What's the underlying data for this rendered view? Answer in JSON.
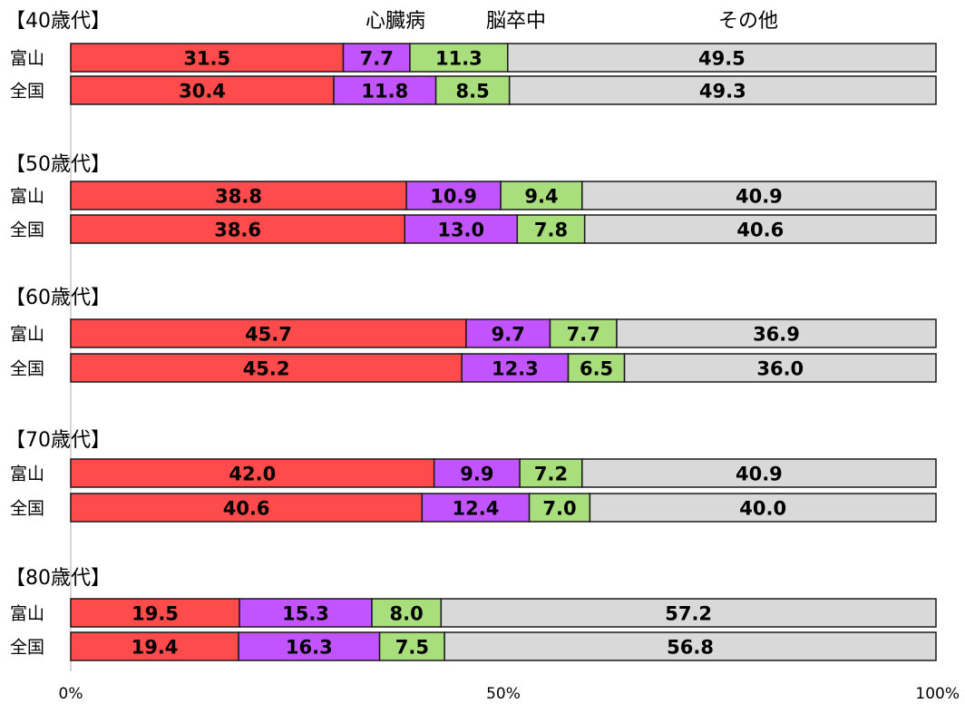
{
  "chart_data": {
    "type": "bar",
    "orientation": "horizontal",
    "stacked": "100%",
    "legend": {
      "placement": "top",
      "entries": [
        "",
        "心臓病",
        "脳卒中",
        "その他"
      ]
    },
    "series": [
      {
        "name": "",
        "color": "#ff4b4b"
      },
      {
        "name": "心臓病",
        "color": "#c154ff"
      },
      {
        "name": "脳卒中",
        "color": "#a9de7d"
      },
      {
        "name": "その他",
        "color": "#d9d9d9"
      }
    ],
    "groups": [
      {
        "title": "【40歳代】",
        "rows": [
          {
            "label": "富山",
            "values": [
              31.5,
              7.7,
              11.3,
              49.5
            ]
          },
          {
            "label": "全国",
            "values": [
              30.4,
              11.8,
              8.5,
              49.3
            ]
          }
        ]
      },
      {
        "title": "【50歳代】",
        "rows": [
          {
            "label": "富山",
            "values": [
              38.8,
              10.9,
              9.4,
              40.9
            ]
          },
          {
            "label": "全国",
            "values": [
              38.6,
              13.0,
              7.8,
              40.6
            ]
          }
        ]
      },
      {
        "title": "【60歳代】",
        "rows": [
          {
            "label": "富山",
            "values": [
              45.7,
              9.7,
              7.7,
              36.9
            ]
          },
          {
            "label": "全国",
            "values": [
              45.2,
              12.3,
              6.5,
              36.0
            ]
          }
        ]
      },
      {
        "title": "【70歳代】",
        "rows": [
          {
            "label": "富山",
            "values": [
              42.0,
              9.9,
              7.2,
              40.9
            ]
          },
          {
            "label": "全国",
            "values": [
              40.6,
              12.4,
              7.0,
              40.0
            ]
          }
        ]
      },
      {
        "title": "【80歳代】",
        "rows": [
          {
            "label": "富山",
            "values": [
              19.5,
              15.3,
              8.0,
              57.2
            ]
          },
          {
            "label": "全国",
            "values": [
              19.4,
              16.3,
              7.5,
              56.8
            ]
          }
        ]
      }
    ],
    "x_ticks": [
      "0%",
      "50%",
      "100%"
    ],
    "xlim": [
      0,
      100
    ],
    "grid": false
  }
}
